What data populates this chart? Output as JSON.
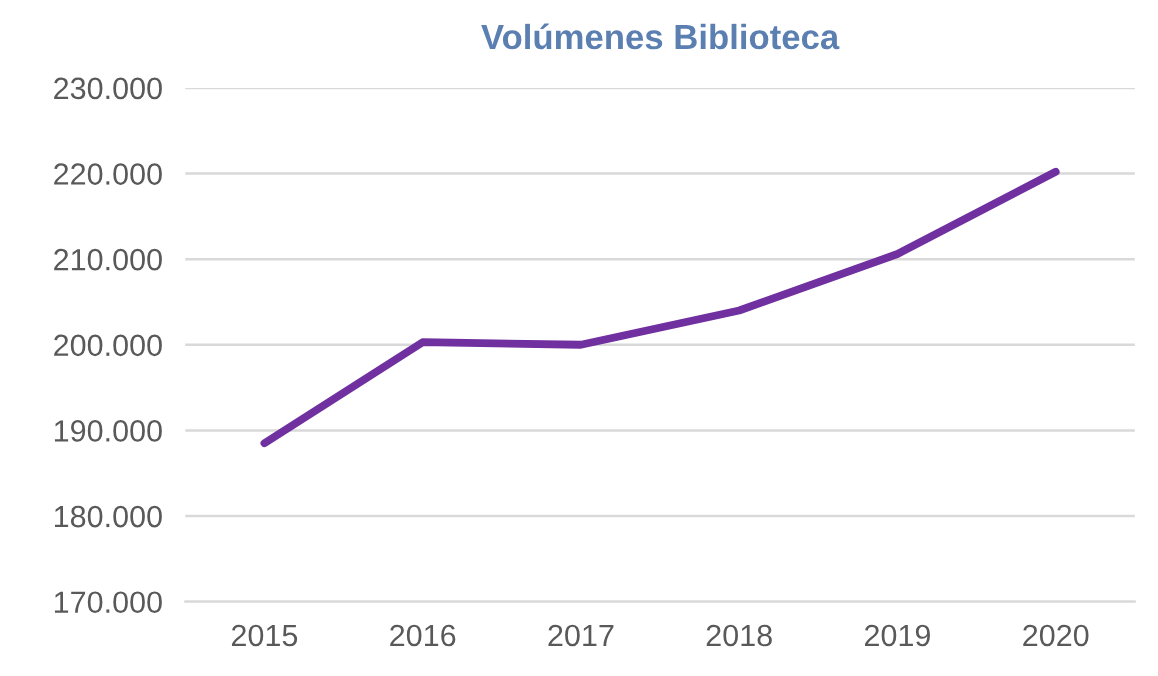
{
  "chart_data": {
    "type": "line",
    "title": "Volúmenes Biblioteca",
    "categories": [
      "2015",
      "2016",
      "2017",
      "2018",
      "2019",
      "2020"
    ],
    "series": [
      {
        "color": "#7030a0",
        "values": [
          188500,
          200300,
          200000,
          204000,
          210600,
          220200
        ]
      }
    ],
    "ylim": [
      170000,
      230000
    ],
    "yticks": [
      {
        "value": 170000,
        "label": "170.000"
      },
      {
        "value": 180000,
        "label": "180.000"
      },
      {
        "value": 190000,
        "label": "190.000"
      },
      {
        "value": 200000,
        "label": "200.000"
      },
      {
        "value": 210000,
        "label": "210.000"
      },
      {
        "value": 220000,
        "label": "220.000"
      },
      {
        "value": 230000,
        "label": "230.000"
      }
    ],
    "grid": "y",
    "marker": "none",
    "line_style": "solid"
  }
}
